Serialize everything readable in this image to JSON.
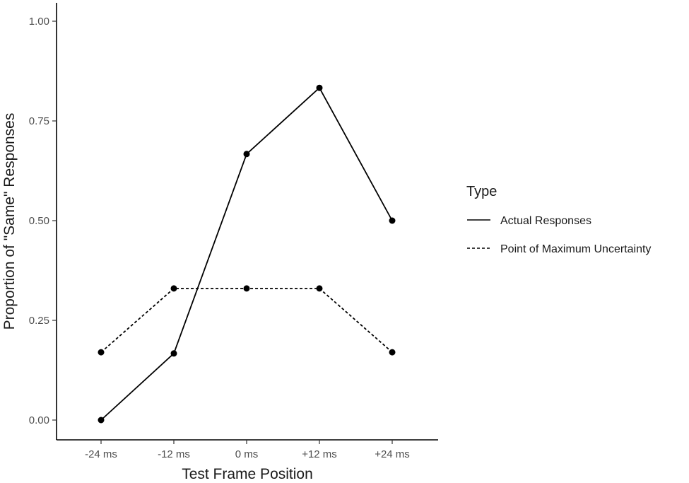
{
  "chart_data": {
    "type": "line",
    "categories": [
      "-24 ms",
      "-12 ms",
      "0 ms",
      "+12 ms",
      "+24 ms"
    ],
    "series": [
      {
        "name": "Actual Responses",
        "linetype": "solid",
        "values": [
          0.0,
          0.167,
          0.667,
          0.833,
          0.5
        ]
      },
      {
        "name": "Point of Maximum Uncertainty",
        "linetype": "dashed",
        "values": [
          0.17,
          0.33,
          0.33,
          0.33,
          0.17
        ]
      }
    ],
    "xlabel": "Test Frame Position",
    "ylabel": "Proportion of \"Same\" Responses",
    "ylim": [
      0,
      1.05
    ],
    "yticks": [
      "0.00",
      "0.25",
      "0.50",
      "0.75",
      "1.00"
    ],
    "legend": {
      "title": "Type",
      "position": "right"
    },
    "grid": false
  }
}
